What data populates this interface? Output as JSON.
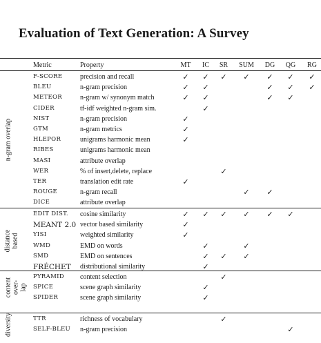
{
  "title": "Evaluation of Text Generation: A Survey",
  "headers": {
    "metric": "Metric",
    "property": "Property",
    "tasks": [
      "MT",
      "IC",
      "SR",
      "SUM",
      "DG",
      "QG",
      "RG"
    ]
  },
  "check_glyph": "✓",
  "groups": [
    {
      "label_lines": [
        "n-gram overlap"
      ],
      "rows": [
        {
          "metric": "F-SCORE",
          "property": "precision and recall",
          "checks": [
            1,
            1,
            1,
            1,
            1,
            1,
            1
          ]
        },
        {
          "metric": "BLEU",
          "property": "n-gram precision",
          "checks": [
            1,
            1,
            0,
            0,
            1,
            1,
            1
          ]
        },
        {
          "metric": "METEOR",
          "property": "n-gram w/ synonym match",
          "checks": [
            1,
            1,
            0,
            0,
            1,
            1,
            0
          ]
        },
        {
          "metric": "CIDER",
          "property": "tf-idf weighted n-gram sim.",
          "checks": [
            0,
            1,
            0,
            0,
            0,
            0,
            0
          ]
        },
        {
          "metric": "NIST",
          "property": "n-gram precision",
          "checks": [
            1,
            0,
            0,
            0,
            0,
            0,
            0
          ]
        },
        {
          "metric": "GTM",
          "property": "n-gram metrics",
          "checks": [
            1,
            0,
            0,
            0,
            0,
            0,
            0
          ]
        },
        {
          "metric": "HLEPOR",
          "property": "unigrams harmonic mean",
          "checks": [
            1,
            0,
            0,
            0,
            0,
            0,
            0
          ]
        },
        {
          "metric": "RIBES",
          "property": "unigrams harmonic mean",
          "checks": [
            0,
            0,
            0,
            0,
            0,
            0,
            0
          ]
        },
        {
          "metric": "MASI",
          "property": "attribute overlap",
          "checks": [
            0,
            0,
            0,
            0,
            0,
            0,
            0
          ]
        },
        {
          "metric": "WER",
          "property": "% of insert,delete, replace",
          "checks": [
            0,
            0,
            1,
            0,
            0,
            0,
            0
          ]
        },
        {
          "metric": "TER",
          "property": "translation edit rate",
          "checks": [
            1,
            0,
            0,
            0,
            0,
            0,
            0
          ]
        },
        {
          "metric": "ROUGE",
          "property": "n-gram recall",
          "checks": [
            0,
            0,
            0,
            1,
            1,
            0,
            0
          ]
        },
        {
          "metric": "DICE",
          "property": "attribute overlap",
          "checks": [
            0,
            0,
            0,
            0,
            0,
            0,
            0
          ]
        }
      ]
    },
    {
      "label_lines": [
        "distance",
        "based"
      ],
      "rows": [
        {
          "metric": "EDIT DIST.",
          "property": "cosine similarity",
          "checks": [
            1,
            1,
            1,
            1,
            1,
            1,
            0
          ]
        },
        {
          "metric": "MEANT 2.0",
          "property": "vector based similarity",
          "checks": [
            1,
            0,
            0,
            0,
            0,
            0,
            0
          ],
          "big": true
        },
        {
          "metric": "YISI",
          "property": "weighted similarity",
          "checks": [
            1,
            0,
            0,
            0,
            0,
            0,
            0
          ]
        },
        {
          "metric": "WMD",
          "property": "EMD on words",
          "checks": [
            0,
            1,
            0,
            1,
            0,
            0,
            0
          ]
        },
        {
          "metric": "SMD",
          "property": "EMD on sentences",
          "checks": [
            0,
            1,
            1,
            1,
            0,
            0,
            0
          ]
        },
        {
          "metric": "FRÉCHET",
          "property": "distributional similarity",
          "checks": [
            0,
            1,
            0,
            0,
            0,
            0,
            0
          ],
          "big": true
        }
      ]
    },
    {
      "label_lines": [
        "content",
        "over-",
        "lap"
      ],
      "rows": [
        {
          "metric": "PYRAMID",
          "property": "content selection",
          "checks": [
            0,
            0,
            1,
            0,
            0,
            0,
            0
          ]
        },
        {
          "metric": "SPICE",
          "property": "scene graph similarity",
          "checks": [
            0,
            1,
            0,
            0,
            0,
            0,
            0
          ]
        },
        {
          "metric": "SPIDER",
          "property": "scene graph similarity",
          "checks": [
            0,
            1,
            0,
            0,
            0,
            0,
            0
          ]
        }
      ]
    },
    {
      "label_lines": [
        "diversity"
      ],
      "rows": [
        {
          "metric": "TTR",
          "property": "richness of vocabulary",
          "checks": [
            0,
            0,
            1,
            0,
            0,
            0,
            0
          ]
        },
        {
          "metric": "SELF-BLEU",
          "property": "n-gram precision",
          "checks": [
            0,
            0,
            0,
            0,
            0,
            1,
            0
          ]
        }
      ]
    }
  ]
}
